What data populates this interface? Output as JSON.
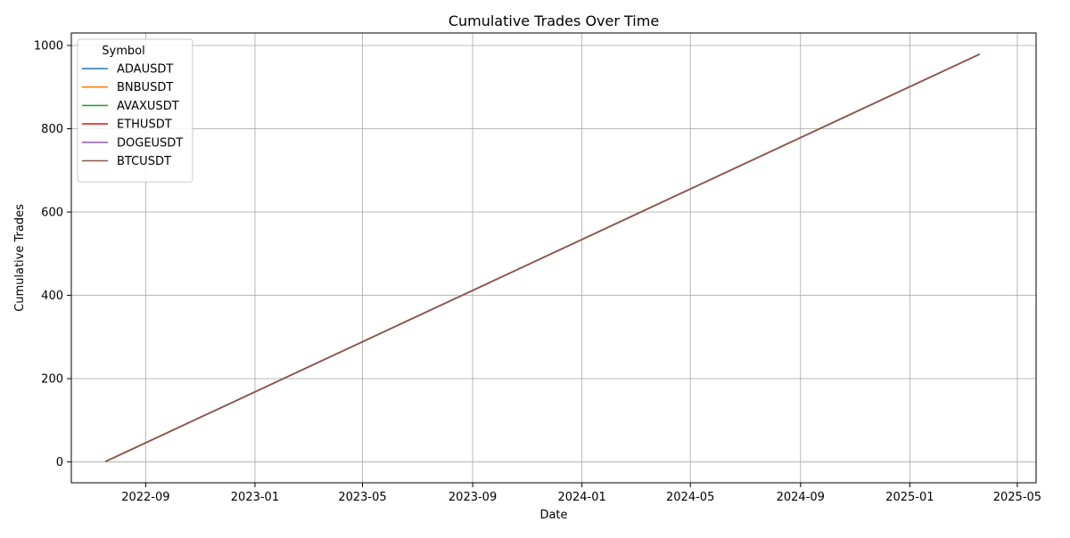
{
  "chart_data": {
    "type": "line",
    "title": "Cumulative Trades Over Time",
    "xlabel": "Date",
    "ylabel": "Cumulative Trades",
    "x_type": "date",
    "xlim": [
      "2022-06-10",
      "2025-05-22"
    ],
    "ylim": [
      -50,
      1030
    ],
    "x_ticks": [
      "2022-09",
      "2023-01",
      "2023-05",
      "2023-09",
      "2024-01",
      "2024-05",
      "2024-09",
      "2025-01",
      "2025-05"
    ],
    "y_ticks": [
      0,
      200,
      400,
      600,
      800,
      1000
    ],
    "grid": true,
    "legend": {
      "title": "Symbol",
      "placement": "top-left"
    },
    "series": [
      {
        "name": "ADAUSDT",
        "color": "#1f77b4",
        "x": [
          "2022-07-18",
          "2025-03-20"
        ],
        "y": [
          1,
          979
        ]
      },
      {
        "name": "BNBUSDT",
        "color": "#ff7f0e",
        "x": [
          "2022-07-18",
          "2025-03-20"
        ],
        "y": [
          1,
          979
        ]
      },
      {
        "name": "AVAXUSDT",
        "color": "#2ca02c",
        "x": [
          "2022-07-18",
          "2025-03-20"
        ],
        "y": [
          1,
          979
        ]
      },
      {
        "name": "ETHUSDT",
        "color": "#d62728",
        "x": [
          "2022-07-18",
          "2025-03-20"
        ],
        "y": [
          1,
          979
        ]
      },
      {
        "name": "DOGEUSDT",
        "color": "#9467bd",
        "x": [
          "2022-07-18",
          "2025-03-20"
        ],
        "y": [
          1,
          979
        ]
      },
      {
        "name": "BTCUSDT",
        "color": "#8c564b",
        "x": [
          "2022-07-18",
          "2025-03-20"
        ],
        "y": [
          1,
          979
        ]
      }
    ]
  }
}
